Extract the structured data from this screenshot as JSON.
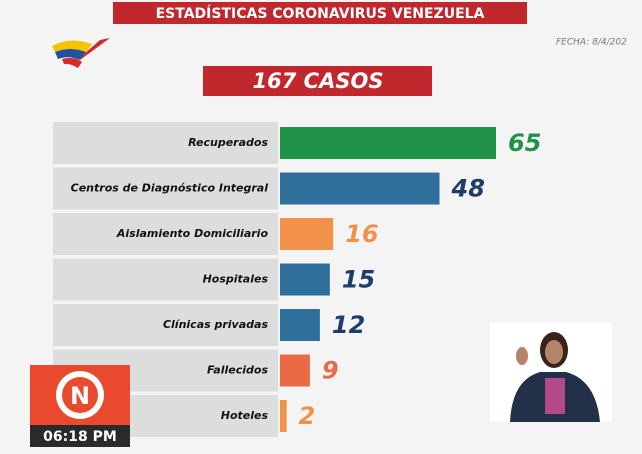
{
  "header": {
    "title": "ESTADÍSTICAS CORONAVIRUS VENEZUELA",
    "date": "FECHA: 8/4/202"
  },
  "chart_data": {
    "type": "bar",
    "orientation": "horizontal",
    "title": "167 CASOS",
    "categories": [
      "Recuperados",
      "Centros de Diagnóstico Integral",
      "Aislamiento Domiciliario",
      "Hospitales",
      "Clínicas privadas",
      "Fallecidos",
      "Hoteles"
    ],
    "values": [
      65,
      48,
      16,
      15,
      12,
      9,
      2
    ],
    "colors": [
      "#1f9247",
      "#2f6f9c",
      "#f2924a",
      "#2f6f9c",
      "#2f6f9c",
      "#ea6a45",
      "#f2924a"
    ],
    "value_label_colors": [
      "#1f9247",
      "#1f3d6b",
      "#f2924a",
      "#1f3d6b",
      "#1f3d6b",
      "#ea6a45",
      "#f2924a"
    ]
  },
  "overlay": {
    "logo": "N",
    "clock": "06:18 PM"
  }
}
